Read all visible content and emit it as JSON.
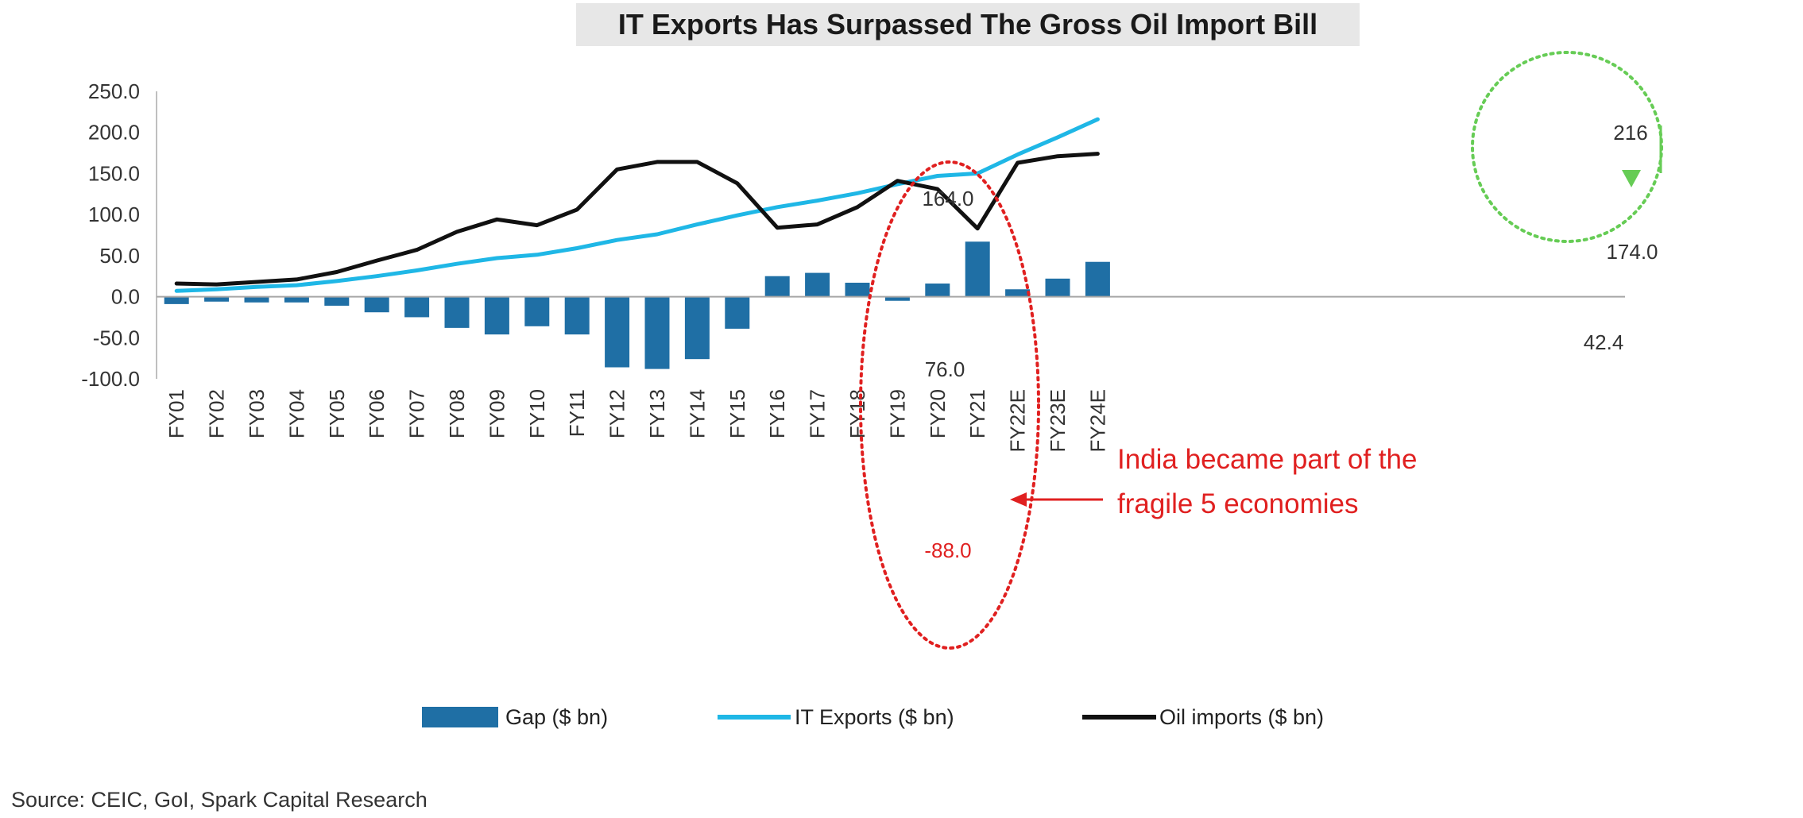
{
  "title": "IT Exports Has Surpassed The Gross Oil Import Bill",
  "source": "Source: CEIC, GoI, Spark Capital Research",
  "colors": {
    "gap": "#1f6fa5",
    "it_exports": "#1fb7e6",
    "oil_imports": "#111111",
    "highlight_red": "#e02020",
    "highlight_green": "#66cc55"
  },
  "chart_data": {
    "type": "bar",
    "categories": [
      "FY01",
      "FY02",
      "FY03",
      "FY04",
      "FY05",
      "FY06",
      "FY07",
      "FY08",
      "FY09",
      "FY10",
      "FY11",
      "FY12",
      "FY13",
      "FY14",
      "FY15",
      "FY16",
      "FY17",
      "FY18",
      "FY19",
      "FY20",
      "FY21",
      "FY22E",
      "FY23E",
      "FY24E"
    ],
    "series": [
      {
        "name": "Gap ($ bn)",
        "type": "bar",
        "values": [
          -9,
          -6,
          -7,
          -7,
          -11,
          -19,
          -25,
          -38,
          -46,
          -36,
          -46,
          -86,
          -88,
          -76,
          -39,
          25,
          29,
          17,
          -5,
          16,
          67,
          9,
          22,
          42.4
        ]
      },
      {
        "name": "IT Exports ($ bn)",
        "type": "line",
        "values": [
          7,
          9,
          12,
          14,
          19,
          25,
          32,
          40,
          47,
          51,
          59,
          69,
          76,
          88,
          99,
          109,
          117,
          126,
          137,
          147,
          150,
          173,
          194,
          216
        ]
      },
      {
        "name": "Oil imports ($ bn)",
        "type": "line",
        "values": [
          16,
          15,
          18,
          21,
          30,
          44,
          57,
          79,
          94,
          87,
          106,
          155,
          164,
          164,
          138,
          84,
          88,
          109,
          141,
          131,
          83,
          163,
          171,
          174
        ]
      }
    ],
    "yticks": [
      "250.0",
      "200.0",
      "150.0",
      "100.0",
      "50.0",
      "0.0",
      "-50.0",
      "-100.0"
    ],
    "ylim": [
      -100,
      250
    ],
    "legend_position": "bottom",
    "annotations": {
      "oil_peak": "164.0",
      "it_fy13": "76.0",
      "gap_fy13": "-88.0",
      "it_fy24": "216",
      "oil_fy24": "174.0",
      "gap_fy24": "42.4",
      "fragile_line1": "India became part of the",
      "fragile_line2": "fragile 5 economies"
    }
  }
}
